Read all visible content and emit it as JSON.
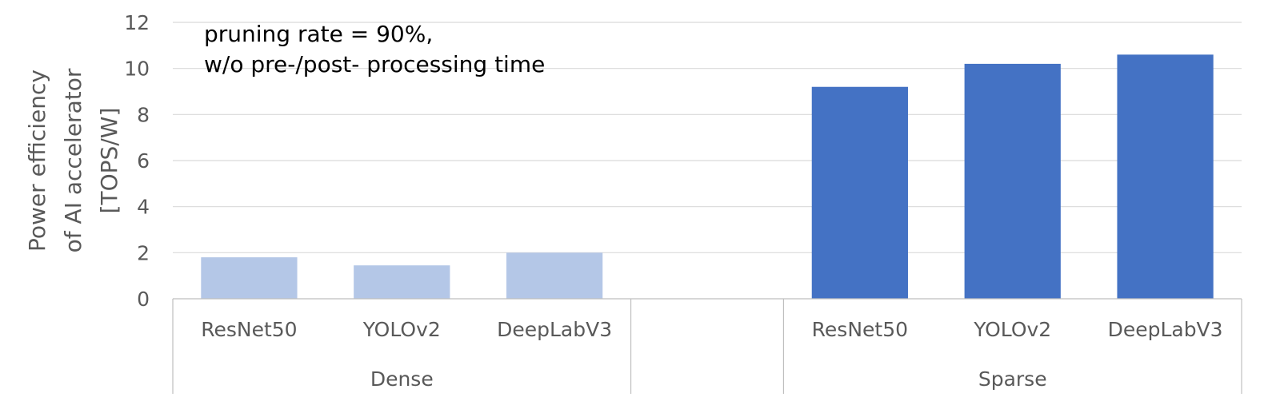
{
  "chart_data": {
    "type": "bar",
    "title": "",
    "annotation_lines": [
      "pruning rate = 90%,",
      "w/o pre-/post- processing time"
    ],
    "ylabel_lines": [
      "Power efficiency",
      "of AI accelerator",
      "[TOPS/W]"
    ],
    "xlabel": "",
    "ylim": [
      0,
      12
    ],
    "yticks": [
      0,
      2,
      4,
      6,
      8,
      10,
      12
    ],
    "grid": true,
    "legend": "none",
    "groups": [
      {
        "label": "Dense",
        "color": "#b4c7e7",
        "categories": [
          "ResNet50",
          "YOLOv2",
          "DeepLabV3"
        ],
        "values": [
          1.8,
          1.45,
          2.0
        ]
      },
      {
        "label": "",
        "color": "#b4c7e7",
        "categories": [
          ""
        ],
        "values": [
          null
        ]
      },
      {
        "label": "Sparse",
        "color": "#4472c4",
        "categories": [
          "ResNet50",
          "YOLOv2",
          "DeepLabV3"
        ],
        "values": [
          9.2,
          10.2,
          10.6
        ]
      }
    ]
  }
}
